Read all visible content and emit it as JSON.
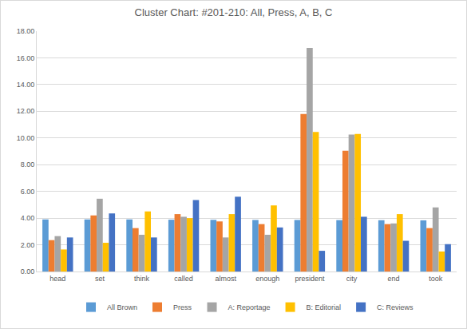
{
  "chart_data": {
    "type": "bar",
    "title": "Cluster Chart: #201-210: All, Press, A, B, C",
    "categories": [
      "head",
      "set",
      "think",
      "called",
      "almost",
      "enough",
      "president",
      "city",
      "end",
      "took"
    ],
    "series": [
      {
        "name": "All Brown",
        "color": "#5b9bd5",
        "values": [
          3.9,
          3.9,
          3.9,
          3.88,
          3.87,
          3.86,
          3.86,
          3.85,
          3.84,
          3.83
        ]
      },
      {
        "name": "Press",
        "color": "#ed7d31",
        "values": [
          2.35,
          4.2,
          3.25,
          4.3,
          3.75,
          3.55,
          11.8,
          9.05,
          3.55,
          3.25
        ]
      },
      {
        "name": "A: Reportage",
        "color": "#a5a5a5",
        "values": [
          2.65,
          5.45,
          2.75,
          4.1,
          2.55,
          2.75,
          16.75,
          10.25,
          3.6,
          4.8
        ]
      },
      {
        "name": "B: Editorial",
        "color": "#ffc000",
        "values": [
          1.65,
          2.15,
          4.5,
          4.0,
          4.3,
          4.95,
          10.45,
          10.3,
          4.3,
          1.5
        ]
      },
      {
        "name": "C: Reviews",
        "color": "#4472c4",
        "values": [
          2.55,
          4.35,
          2.55,
          5.35,
          5.6,
          3.3,
          1.55,
          4.1,
          2.3,
          2.05
        ]
      }
    ],
    "ylim": [
      0,
      18
    ],
    "yticks": [
      {
        "value": 0,
        "label": "0.00"
      },
      {
        "value": 2,
        "label": "2.00"
      },
      {
        "value": 4,
        "label": "4.00"
      },
      {
        "value": 6,
        "label": "6.00"
      },
      {
        "value": 8,
        "label": "8.00"
      },
      {
        "value": 10,
        "label": "10.00"
      },
      {
        "value": 12,
        "label": "12.00"
      },
      {
        "value": 14,
        "label": "14.00"
      },
      {
        "value": 16,
        "label": "16.00"
      },
      {
        "value": 18,
        "label": "18.00"
      }
    ],
    "grid": true,
    "legend": "bottom"
  }
}
